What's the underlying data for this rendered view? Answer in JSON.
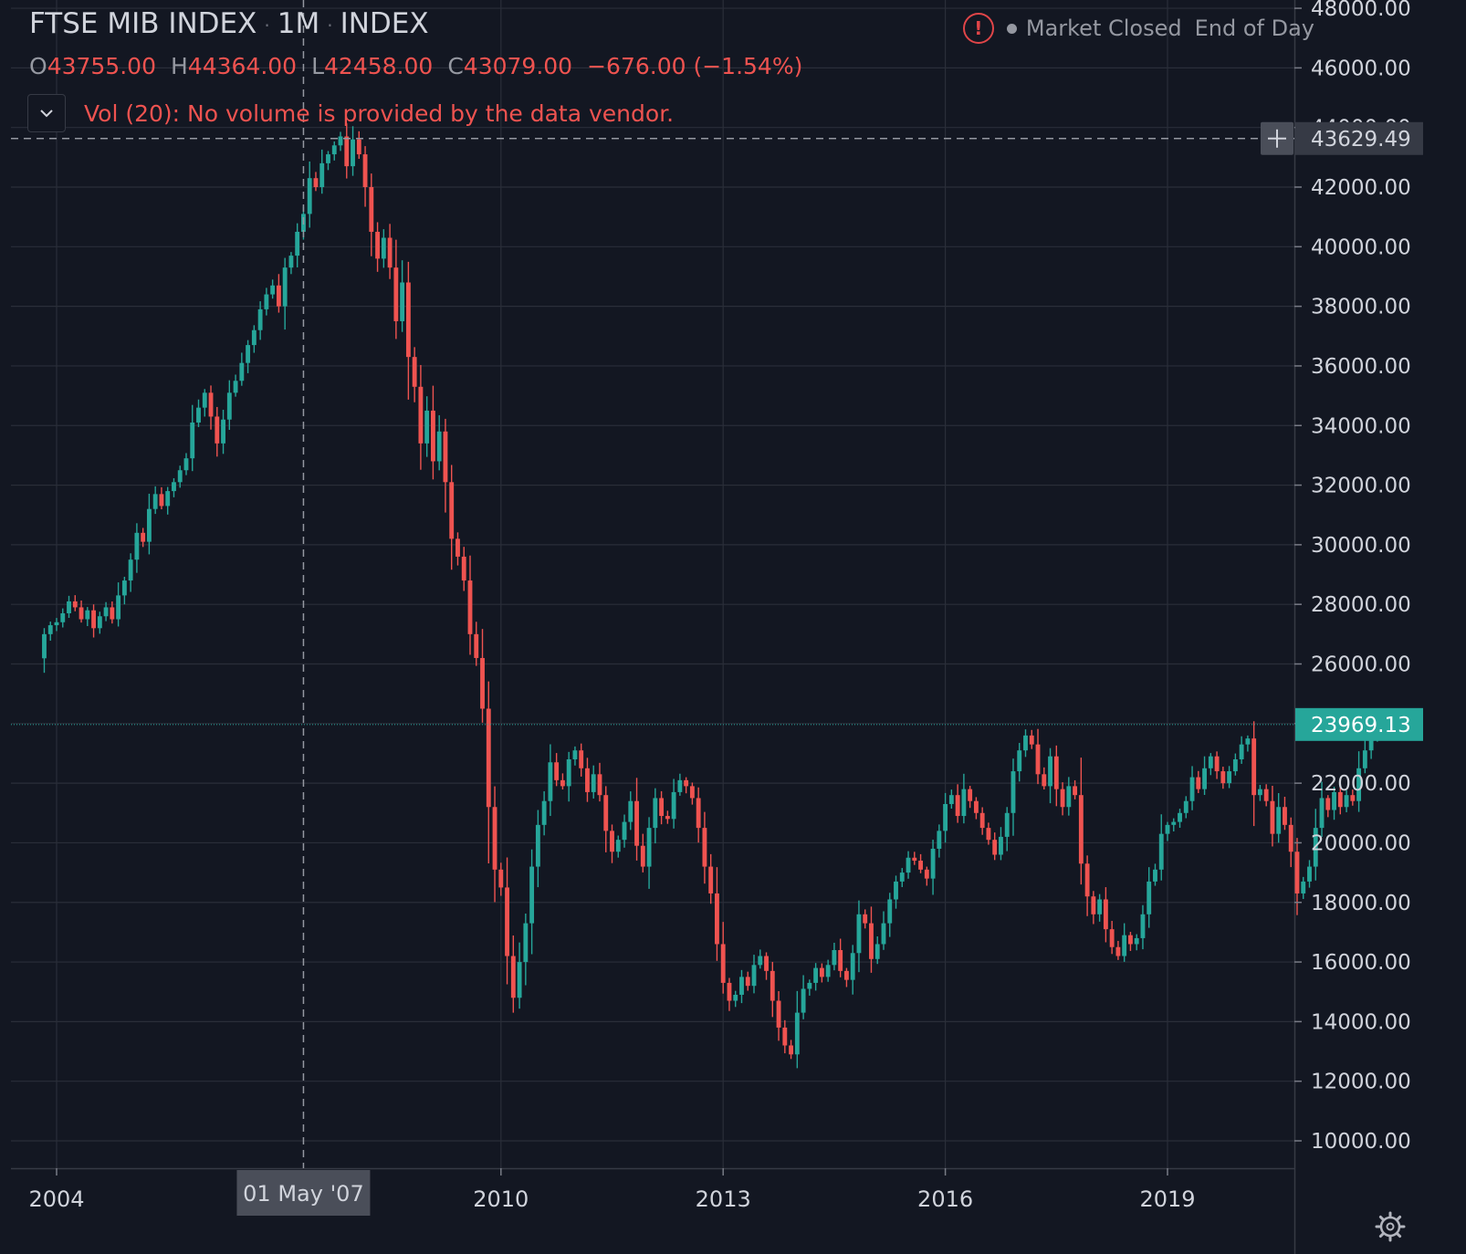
{
  "header": {
    "symbol": "FTSE MIB INDEX",
    "interval": "1M",
    "exchange": "INDEX",
    "dot_separator": "·",
    "ohlc": {
      "open_label": "O",
      "open": "43755.00",
      "high_label": "H",
      "high": "44364.00",
      "low_label": "L",
      "low": "42458.00",
      "close_label": "C",
      "close": "43079.00",
      "change": "−676.00 (−1.54%)"
    },
    "volume_note": "Vol (20): No volume is provided by the data vendor."
  },
  "status": {
    "alert_glyph": "!",
    "market": "Market Closed",
    "data_mode": "End of Day"
  },
  "crosshair": {
    "price_label": "43629.49",
    "date_label": "01 May '07",
    "price": 43629.49,
    "date": "2007-05-01"
  },
  "last_price": {
    "label": "23969.13",
    "value": 23969.13
  },
  "colors": {
    "background": "#131722",
    "up": "#26a69a",
    "down": "#ef5350",
    "grid": "#2a2e39",
    "axis_text": "#d1d4dc",
    "last_price_tag": "#26a69a",
    "alert": "#e04548"
  },
  "icons": {
    "collapse": "chevron-down-icon",
    "settings": "gear-icon",
    "alert": "alert-circle-icon",
    "crosshair": "plus-icon"
  },
  "chart_data": {
    "type": "candlestick",
    "title": "FTSE MIB INDEX",
    "interval": "1M",
    "grid": true,
    "ylim": [
      10000,
      48000
    ],
    "xlim": [
      "2003-10",
      "2020-03"
    ],
    "y_ticks": [
      "48000.00",
      "46000.00",
      "44000.00",
      "42000.00",
      "40000.00",
      "38000.00",
      "36000.00",
      "34000.00",
      "32000.00",
      "30000.00",
      "28000.00",
      "26000.00",
      "24000.00",
      "22000.00",
      "20000.00",
      "18000.00",
      "16000.00",
      "14000.00",
      "12000.00",
      "10000.00"
    ],
    "x_ticks": [
      {
        "label": "2004",
        "date": "2004-01"
      },
      {
        "label": "2010",
        "date": "2010-01"
      },
      {
        "label": "2013",
        "date": "2013-01"
      },
      {
        "label": "2016",
        "date": "2016-01"
      },
      {
        "label": "2019",
        "date": "2019-01"
      }
    ],
    "start_month": "2003-11",
    "closes": [
      27000,
      27300,
      27400,
      27700,
      28100,
      27900,
      27500,
      27800,
      27200,
      27600,
      27900,
      27500,
      28300,
      28800,
      29500,
      30400,
      30100,
      31200,
      31700,
      31300,
      31800,
      32100,
      32500,
      32900,
      34100,
      34600,
      35100,
      34300,
      33400,
      34200,
      35100,
      35500,
      36100,
      36700,
      37200,
      37900,
      38400,
      38700,
      38000,
      39300,
      39700,
      40500,
      41100,
      42300,
      42000,
      42800,
      43100,
      43400,
      43700,
      42700,
      43600,
      43100,
      42000,
      40500,
      39600,
      40300,
      39300,
      37500,
      38800,
      36300,
      35300,
      33400,
      34500,
      32800,
      33800,
      32100,
      30200,
      29600,
      28800,
      27000,
      26200,
      24500,
      21200,
      19100,
      18500,
      16200,
      14800,
      16000,
      17300,
      19200,
      20600,
      21400,
      22700,
      22100,
      21900,
      22800,
      23100,
      22500,
      21700,
      22300,
      21600,
      20400,
      19700,
      20100,
      20700,
      21400,
      19900,
      19200,
      20500,
      21500,
      20900,
      20800,
      21700,
      22100,
      21900,
      21500,
      20500,
      19200,
      18300,
      16600,
      15300,
      14700,
      14900,
      15500,
      15200,
      15900,
      16200,
      15700,
      14700,
      13800,
      13200,
      12900,
      14300,
      15100,
      15300,
      15800,
      15500,
      15900,
      16400,
      15700,
      15400,
      16300,
      17600,
      17300,
      16100,
      16600,
      17300,
      18100,
      18700,
      19000,
      19500,
      19400,
      19100,
      18800,
      19800,
      20400,
      21300,
      21600,
      20900,
      21800,
      21400,
      21000,
      20500,
      20100,
      19600,
      20200,
      21000,
      22400,
      23100,
      23600,
      23300,
      22300,
      21900,
      22900,
      21800,
      21200,
      21900,
      21600,
      19300,
      18200,
      17600,
      18100,
      17100,
      16500,
      16200,
      16900,
      16600,
      16800,
      17600,
      18700,
      19100,
      20300,
      20600,
      20700,
      21000,
      21400,
      22200,
      21800,
      22500,
      22900,
      22400,
      22000,
      22400,
      22800,
      23300,
      23500,
      21600,
      21800,
      21400,
      20300,
      21200,
      20600,
      19700,
      18300,
      18700,
      19200,
      20500,
      21500,
      21100,
      21700,
      21200,
      21600,
      21400,
      22500,
      23100,
      23600,
      23969.13
    ]
  }
}
